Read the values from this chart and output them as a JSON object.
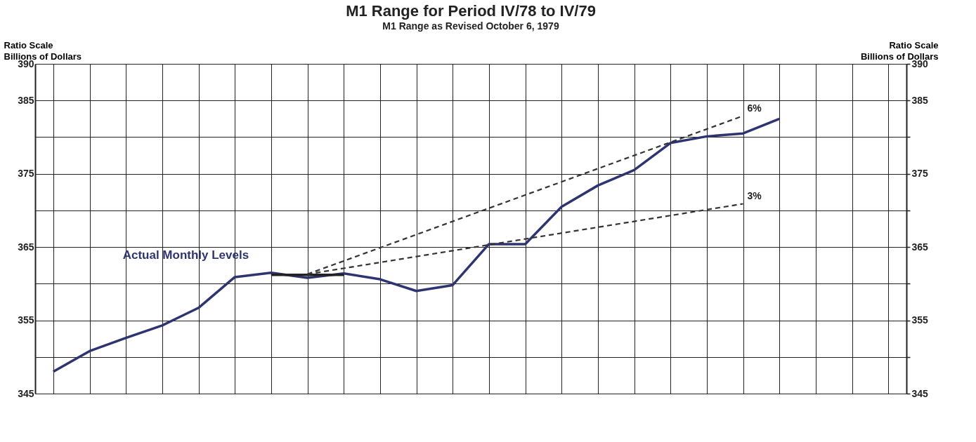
{
  "chart_data": {
    "type": "line",
    "title": "M1 Range for Period IV/78 to IV/79",
    "subtitle": "M1 Range as Revised October 6, 1979",
    "ylabel": "Ratio Scale\nBillions of Dollars",
    "y2label": "Ratio Scale\nBillions of Dollars",
    "categories": [
      null,
      null,
      null,
      null,
      null,
      null,
      null,
      null,
      null,
      null,
      null,
      null,
      null,
      null,
      null,
      null,
      null,
      null,
      null,
      null,
      null,
      null,
      null,
      null
    ],
    "series": [
      {
        "name": "Actual Monthly Levels",
        "color": "#2e3470",
        "line_style": "solid",
        "values": [
          348.0,
          350.8,
          352.6,
          354.3,
          356.7,
          360.9,
          361.5,
          360.8,
          361.4,
          360.6,
          359.0,
          359.8,
          365.4,
          365.4,
          370.5,
          373.4,
          375.5,
          379.2,
          380.1,
          380.5,
          382.5,
          null,
          null,
          null
        ]
      },
      {
        "color": "#222222",
        "line_style": "solid",
        "values": [
          null,
          null,
          null,
          null,
          null,
          null,
          361.2,
          361.2,
          361.2,
          null,
          null,
          null,
          null,
          null,
          null,
          null,
          null,
          null,
          null,
          null,
          null,
          null,
          null,
          null
        ]
      },
      {
        "name": "6%",
        "color": "#333333",
        "line_style": "dashed",
        "values": [
          null,
          null,
          null,
          null,
          null,
          null,
          null,
          361.3,
          null,
          null,
          null,
          null,
          null,
          null,
          null,
          null,
          null,
          null,
          null,
          382.9,
          null,
          null,
          null,
          null
        ]
      },
      {
        "name": "3%",
        "color": "#333333",
        "line_style": "dashed",
        "values": [
          null,
          null,
          null,
          null,
          null,
          null,
          null,
          361.3,
          null,
          null,
          null,
          null,
          null,
          null,
          null,
          null,
          null,
          null,
          null,
          370.9,
          null,
          null,
          null,
          null
        ]
      }
    ],
    "ylim": [
      345,
      390
    ],
    "yticks": [
      345,
      {
        "value": 350,
        "label": null
      },
      355,
      {
        "value": 360,
        "label": null
      },
      365,
      {
        "value": 370,
        "label": null
      },
      375,
      {
        "value": 380,
        "label": null
      },
      385,
      390
    ],
    "y2lim": [
      345,
      390
    ],
    "y2ticks": [
      345,
      {
        "value": 350,
        "label": null
      },
      355,
      {
        "value": 360,
        "label": null
      },
      365,
      {
        "value": 370,
        "label": null
      },
      375,
      {
        "value": 380,
        "label": null
      },
      385,
      390
    ],
    "grid": true,
    "tick_labels": "y",
    "marker": "none"
  }
}
